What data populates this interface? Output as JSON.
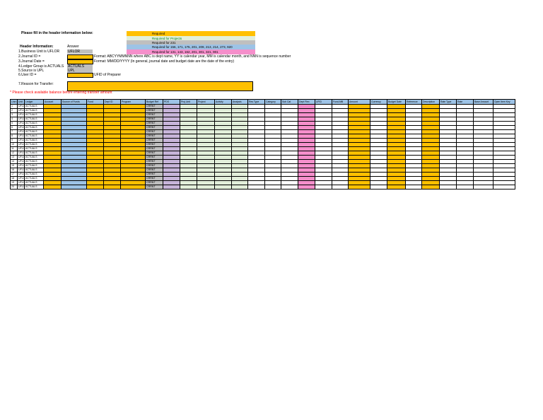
{
  "instruction": "Please fill in the header information below:",
  "legend": [
    {
      "label": "Required",
      "color": "#FFC000",
      "text_color": "#000000"
    },
    {
      "label": "Required for Projects",
      "color": "#E2EFDA",
      "text_color": "#00802B"
    },
    {
      "label": "Required for 231",
      "color": "#BFBFBF",
      "text_color": "#000000"
    },
    {
      "label": "Required for 156, 171, 175, 201, 209, 213, 214, 273, 920",
      "color": "#9DC3E6",
      "text_color": "#000000"
    },
    {
      "label": "Required for 131, 143, 162, 201, 301, 321, 901",
      "color": "#F58FCB",
      "text_color": "#000000"
    }
  ],
  "header_info": {
    "heading": "Header Information:",
    "answer_heading": "Answer",
    "rows": [
      {
        "label": "1.Business Unit is UFLOR",
        "answer": "UFLOR",
        "note": ""
      },
      {
        "label": "2.Journal ID =",
        "answer": "",
        "note": "Format: ABCYYMMNNN where ABC is dept name, YY is calendar year, MM is calendar month, and NNN is sequence number"
      },
      {
        "label": "3.Journal Date =",
        "answer": "",
        "note": "Format: MM/DD/YYYY (In general, journal date and budget date are the date of the entry)"
      },
      {
        "label": "4.Ledger Group is ACTUALS",
        "answer": "ACTUALS",
        "note": ""
      },
      {
        "label": "5.Source is UPL",
        "answer": "UPL",
        "note": ""
      },
      {
        "label": "6.User ID =",
        "answer": "",
        "note": "UFID of Preparer"
      }
    ]
  },
  "reason": {
    "label": "7.Reason for Transfer:",
    "value": ""
  },
  "warning": "* Please check available balance before entering transfer amount",
  "grid": {
    "columns": [
      {
        "label": "Line #",
        "color": "#FFFFFF"
      },
      {
        "label": "Unit",
        "color": "#FFFFFF"
      },
      {
        "label": "Ledger",
        "color": "#FFFFFF"
      },
      {
        "label": "Account",
        "color": "#FFC000"
      },
      {
        "label": "Source of Funds",
        "color": "#9DC3E6"
      },
      {
        "label": "Fund",
        "color": "#FFC000"
      },
      {
        "label": "Dept ID",
        "color": "#FFC000"
      },
      {
        "label": "Program",
        "color": "#FFC000"
      },
      {
        "label": "Budget Ref",
        "color": "#BFBFBF"
      },
      {
        "label": "PDS",
        "color": "#C7B4D9"
      },
      {
        "label": "Proj Unit",
        "color": "#E2EFDA"
      },
      {
        "label": "Project",
        "color": "#E2EFDA"
      },
      {
        "label": "Activity",
        "color": "#E2EFDA"
      },
      {
        "label": "Analysis",
        "color": "#E2EFDA"
      },
      {
        "label": "Res Type",
        "color": "#FFFFFF"
      },
      {
        "label": "Category",
        "color": "#FFFFFF"
      },
      {
        "label": "Sub Cat",
        "color": "#FFFFFF"
      },
      {
        "label": "Dept Flex",
        "color": "#F58FCB"
      },
      {
        "label": "UFID",
        "color": "#FFFFFF"
      },
      {
        "label": "Fund Affil",
        "color": "#FFFFFF"
      },
      {
        "label": "Amount",
        "color": "#FFC000"
      },
      {
        "label": "Currency",
        "color": "#FFFFFF"
      },
      {
        "label": "Budget Date",
        "color": "#FFC000"
      },
      {
        "label": "Reference",
        "color": "#FFFFFF"
      },
      {
        "label": "Description",
        "color": "#FFC000"
      },
      {
        "label": "Rate Type",
        "color": "#FFFFFF"
      },
      {
        "label": "Rate",
        "color": "#FFFFFF"
      },
      {
        "label": "Base Amount",
        "color": "#FFFFFF"
      },
      {
        "label": "Open Item Key",
        "color": "#FFFFFF"
      }
    ],
    "rows": [
      {
        "line": "1",
        "unit": "UFLOR",
        "ledger": "ACTUALS",
        "budget_ref": "CRRNT"
      },
      {
        "line": "2",
        "unit": "UFLOR",
        "ledger": "ACTUALS",
        "budget_ref": "CRRNT"
      },
      {
        "line": "3",
        "unit": "UFLOR",
        "ledger": "ACTUALS",
        "budget_ref": "CRRNT"
      },
      {
        "line": "4",
        "unit": "UFLOR",
        "ledger": "ACTUALS",
        "budget_ref": "CRRNT"
      },
      {
        "line": "5",
        "unit": "UFLOR",
        "ledger": "ACTUALS",
        "budget_ref": "CRRNT"
      },
      {
        "line": "6",
        "unit": "UFLOR",
        "ledger": "ACTUALS",
        "budget_ref": "CRRNT"
      },
      {
        "line": "7",
        "unit": "UFLOR",
        "ledger": "ACTUALS",
        "budget_ref": "CRRNT"
      },
      {
        "line": "8",
        "unit": "UFLOR",
        "ledger": "ACTUALS",
        "budget_ref": "CRRNT"
      },
      {
        "line": "9",
        "unit": "UFLOR",
        "ledger": "ACTUALS",
        "budget_ref": "CRRNT"
      },
      {
        "line": "10",
        "unit": "UFLOR",
        "ledger": "ACTUALS",
        "budget_ref": "CRRNT"
      },
      {
        "line": "11",
        "unit": "UFLOR",
        "ledger": "ACTUALS",
        "budget_ref": "CRRNT"
      },
      {
        "line": "12",
        "unit": "UFLOR",
        "ledger": "ACTUALS",
        "budget_ref": "CRRNT"
      },
      {
        "line": "13",
        "unit": "UFLOR",
        "ledger": "ACTUALS",
        "budget_ref": "CRRNT"
      },
      {
        "line": "14",
        "unit": "UFLOR",
        "ledger": "ACTUALS",
        "budget_ref": "CRRNT"
      },
      {
        "line": "15",
        "unit": "UFLOR",
        "ledger": "ACTUALS",
        "budget_ref": "CRRNT"
      },
      {
        "line": "16",
        "unit": "UFLOR",
        "ledger": "ACTUALS",
        "budget_ref": "CRRNT"
      },
      {
        "line": "17",
        "unit": "UFLOR",
        "ledger": "ACTUALS",
        "budget_ref": "CRRNT"
      },
      {
        "line": "18",
        "unit": "UFLOR",
        "ledger": "ACTUALS",
        "budget_ref": "CRRNT"
      },
      {
        "line": "19",
        "unit": "UFLOR",
        "ledger": "ACTUALS",
        "budget_ref": "CRRNT"
      },
      {
        "line": "20",
        "unit": "UFLOR",
        "ledger": "ACTUALS",
        "budget_ref": "CRRNT"
      }
    ]
  }
}
